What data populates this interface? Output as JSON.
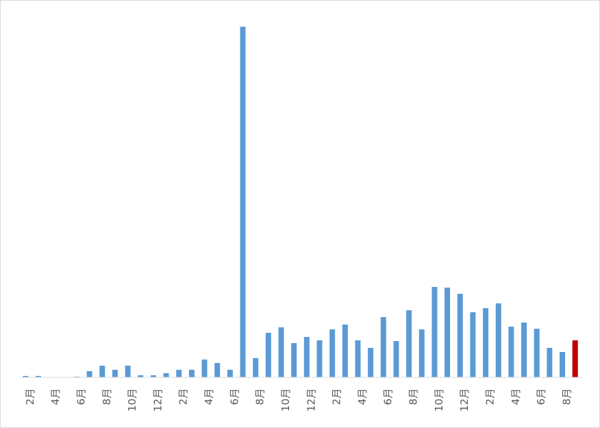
{
  "chart_data": {
    "type": "bar",
    "categories": [
      "2月",
      null,
      "4月",
      null,
      "6月",
      null,
      "8月",
      null,
      "10月",
      null,
      "12月",
      null,
      "2月",
      null,
      "4月",
      null,
      "6月",
      null,
      "8月",
      null,
      "10月",
      null,
      "12月",
      null,
      "2月",
      null,
      "4月",
      null,
      "6月",
      null,
      "8月",
      null,
      "10月",
      null,
      "12月",
      null,
      "2月",
      null,
      "4月",
      null,
      "6月",
      null,
      "8月",
      null
    ],
    "values": [
      2,
      2,
      0,
      0,
      1,
      9,
      17,
      11,
      17,
      3,
      3,
      6,
      11,
      11,
      26,
      21,
      11,
      512,
      28,
      65,
      73,
      50,
      59,
      54,
      70,
      77,
      54,
      43,
      88,
      53,
      98,
      70,
      132,
      131,
      122,
      95,
      101,
      108,
      74,
      80,
      71,
      43,
      37,
      54
    ],
    "colors": [
      "#5b9bd5",
      "#5b9bd5",
      "#5b9bd5",
      "#5b9bd5",
      "#5b9bd5",
      "#5b9bd5",
      "#5b9bd5",
      "#5b9bd5",
      "#5b9bd5",
      "#5b9bd5",
      "#5b9bd5",
      "#5b9bd5",
      "#5b9bd5",
      "#5b9bd5",
      "#5b9bd5",
      "#5b9bd5",
      "#5b9bd5",
      "#5b9bd5",
      "#5b9bd5",
      "#5b9bd5",
      "#5b9bd5",
      "#5b9bd5",
      "#5b9bd5",
      "#5b9bd5",
      "#5b9bd5",
      "#5b9bd5",
      "#5b9bd5",
      "#5b9bd5",
      "#5b9bd5",
      "#5b9bd5",
      "#5b9bd5",
      "#5b9bd5",
      "#5b9bd5",
      "#5b9bd5",
      "#5b9bd5",
      "#5b9bd5",
      "#5b9bd5",
      "#5b9bd5",
      "#5b9bd5",
      "#5b9bd5",
      "#5b9bd5",
      "#5b9bd5",
      "#5b9bd5",
      "#c00000"
    ],
    "ylim": [
      0,
      512
    ]
  }
}
